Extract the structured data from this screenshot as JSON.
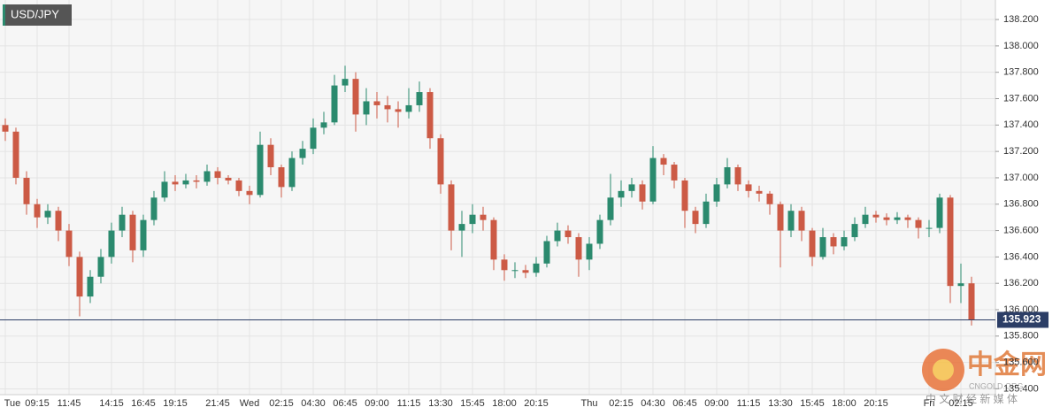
{
  "title": "USD/JPY",
  "watermark": {
    "brand": "中金网",
    "site": "CNGOLD.ORG",
    "slogan": "中 文 财 经 新 媒 体"
  },
  "chart_data": {
    "type": "candlestick",
    "up_color": "#2b8a6e",
    "down_color": "#cc5a45",
    "ylim": [
      135.356,
      138.348
    ],
    "yticks": [
      {
        "value": 135.4,
        "label": "135.400"
      },
      {
        "value": 135.6,
        "label": "135.600"
      },
      {
        "value": 135.8,
        "label": "135.800"
      },
      {
        "value": 136.0,
        "label": "136.000"
      },
      {
        "value": 136.2,
        "label": "136.200"
      },
      {
        "value": 136.4,
        "label": "136.400"
      },
      {
        "value": 136.6,
        "label": "136.600"
      },
      {
        "value": 136.8,
        "label": "136.800"
      },
      {
        "value": 137.0,
        "label": "137.000"
      },
      {
        "value": 137.2,
        "label": "137.200"
      },
      {
        "value": 137.4,
        "label": "137.400"
      },
      {
        "value": 137.6,
        "label": "137.600"
      },
      {
        "value": 137.8,
        "label": "137.800"
      },
      {
        "value": 138.0,
        "label": "138.000"
      },
      {
        "value": 138.2,
        "label": "138.200"
      }
    ],
    "grid": true,
    "last_price": 135.923,
    "categories": [
      "Tue",
      null,
      null,
      "09:15",
      null,
      null,
      "11:45",
      null,
      null,
      null,
      "14:15",
      null,
      null,
      "16:45",
      null,
      null,
      "19:15",
      null,
      null,
      null,
      "21:45",
      null,
      null,
      "Wed",
      null,
      null,
      "02:15",
      null,
      null,
      "04:30",
      null,
      null,
      "06:45",
      null,
      null,
      "09:00",
      null,
      null,
      "11:15",
      null,
      null,
      "13:30",
      null,
      null,
      "15:45",
      null,
      null,
      "18:00",
      null,
      null,
      "20:15",
      null,
      null,
      null,
      null,
      "Thu",
      null,
      null,
      "02:15",
      null,
      null,
      "04:30",
      null,
      null,
      "06:45",
      null,
      null,
      "09:00",
      null,
      null,
      "11:15",
      null,
      null,
      "13:30",
      null,
      null,
      "15:45",
      null,
      null,
      "18:00",
      null,
      null,
      "20:15",
      null,
      null,
      null,
      null,
      "Fri",
      null,
      null,
      "02:15",
      null
    ],
    "open": [
      137.4,
      137.35,
      137.0,
      136.8,
      136.7,
      136.75,
      136.6,
      136.4,
      136.1,
      136.25,
      136.4,
      136.6,
      136.72,
      136.45,
      136.68,
      136.85,
      136.97,
      136.95,
      136.98,
      136.97,
      137.05,
      137.0,
      136.98,
      136.9,
      136.87,
      137.25,
      137.08,
      136.93,
      137.15,
      137.22,
      137.38,
      137.42,
      137.7,
      137.75,
      137.48,
      137.58,
      137.55,
      137.52,
      137.5,
      137.55,
      137.65,
      137.3,
      136.95,
      136.6,
      136.65,
      136.72,
      136.68,
      136.38,
      136.3,
      136.3,
      136.28,
      136.35,
      136.52,
      136.6,
      136.55,
      136.38,
      136.5,
      136.68,
      136.85,
      136.9,
      136.95,
      136.82,
      137.15,
      137.1,
      136.98,
      136.75,
      136.65,
      136.82,
      136.95,
      137.08,
      136.95,
      136.9,
      136.88,
      136.8,
      136.6,
      136.75,
      136.6,
      136.4,
      136.55,
      136.48,
      136.55,
      136.65,
      136.72,
      136.7,
      136.68,
      136.7,
      136.68,
      136.62,
      136.62,
      136.85,
      136.18,
      136.2
    ],
    "high": [
      137.45,
      137.38,
      137.05,
      136.84,
      136.8,
      136.78,
      136.65,
      136.44,
      136.3,
      136.46,
      136.66,
      136.78,
      136.75,
      136.72,
      136.9,
      137.05,
      137.02,
      137.03,
      137.02,
      137.1,
      137.08,
      137.02,
      137.0,
      136.94,
      137.35,
      137.3,
      137.1,
      137.2,
      137.28,
      137.45,
      137.5,
      137.78,
      137.85,
      137.8,
      137.68,
      137.65,
      137.62,
      137.58,
      137.68,
      137.73,
      137.68,
      137.33,
      136.98,
      136.75,
      136.8,
      136.78,
      136.7,
      136.42,
      136.36,
      136.34,
      136.4,
      136.56,
      136.66,
      136.64,
      136.58,
      136.55,
      136.72,
      137.03,
      136.98,
      137.0,
      136.98,
      137.24,
      137.18,
      137.12,
      137.0,
      136.78,
      136.88,
      137.0,
      137.15,
      137.1,
      136.98,
      136.94,
      136.9,
      136.82,
      136.8,
      136.78,
      136.62,
      136.62,
      136.58,
      136.6,
      136.7,
      136.78,
      136.75,
      136.73,
      136.74,
      136.72,
      136.7,
      136.68,
      136.88,
      136.87,
      136.35,
      136.25
    ],
    "low": [
      137.28,
      136.95,
      136.72,
      136.62,
      136.65,
      136.52,
      136.33,
      135.95,
      136.05,
      136.2,
      136.35,
      136.55,
      136.36,
      136.4,
      136.64,
      136.82,
      136.9,
      136.92,
      136.92,
      136.94,
      136.95,
      136.95,
      136.86,
      136.8,
      136.85,
      137.02,
      136.85,
      136.9,
      137.1,
      137.18,
      137.33,
      137.4,
      137.65,
      137.35,
      137.4,
      137.45,
      137.42,
      137.38,
      137.45,
      137.5,
      137.22,
      136.88,
      136.45,
      136.4,
      136.58,
      136.6,
      136.3,
      136.22,
      136.24,
      136.24,
      136.25,
      136.32,
      136.48,
      136.5,
      136.25,
      136.3,
      136.46,
      136.64,
      136.78,
      136.85,
      136.76,
      136.8,
      137.02,
      136.92,
      136.62,
      136.58,
      136.62,
      136.78,
      136.92,
      136.9,
      136.85,
      136.82,
      136.72,
      136.32,
      136.55,
      136.52,
      136.33,
      136.38,
      136.42,
      136.45,
      136.52,
      136.62,
      136.66,
      136.64,
      136.65,
      136.62,
      136.54,
      136.55,
      136.58,
      136.05,
      136.05,
      135.88
    ],
    "close": [
      137.35,
      137.0,
      136.8,
      136.7,
      136.75,
      136.6,
      136.4,
      136.1,
      136.25,
      136.4,
      136.6,
      136.72,
      136.45,
      136.68,
      136.85,
      136.97,
      136.95,
      136.98,
      136.97,
      137.05,
      137.0,
      136.98,
      136.9,
      136.87,
      137.25,
      137.08,
      136.93,
      137.15,
      137.22,
      137.38,
      137.42,
      137.7,
      137.75,
      137.48,
      137.58,
      137.55,
      137.52,
      137.5,
      137.55,
      137.65,
      137.3,
      136.95,
      136.6,
      136.65,
      136.72,
      136.68,
      136.38,
      136.3,
      136.3,
      136.28,
      136.35,
      136.52,
      136.6,
      136.55,
      136.38,
      136.5,
      136.68,
      136.85,
      136.9,
      136.95,
      136.82,
      137.15,
      137.1,
      136.98,
      136.75,
      136.65,
      136.82,
      136.95,
      137.08,
      136.95,
      136.9,
      136.88,
      136.8,
      136.6,
      136.75,
      136.6,
      136.4,
      136.55,
      136.48,
      136.55,
      136.65,
      136.72,
      136.7,
      136.68,
      136.7,
      136.68,
      136.62,
      136.62,
      136.85,
      136.18,
      136.2,
      135.923
    ]
  }
}
